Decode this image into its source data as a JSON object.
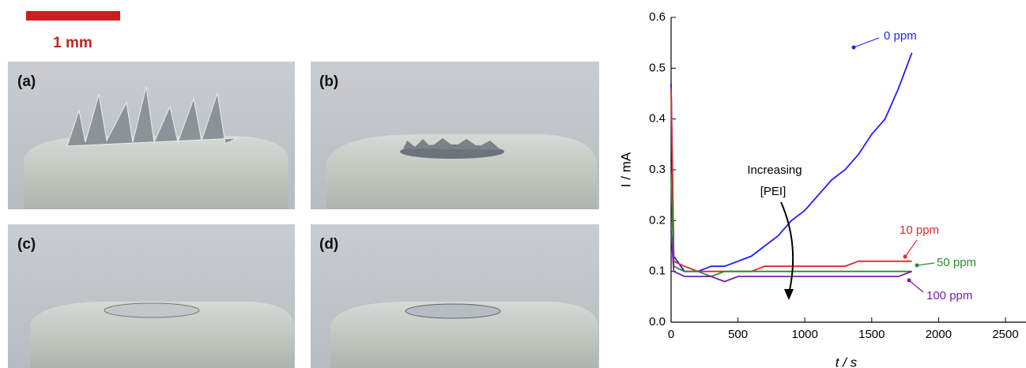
{
  "figure": {
    "scale_bar": "1 mm",
    "panels": [
      "(a)",
      "(b)",
      "(c)",
      "(d)"
    ]
  },
  "chart_data": {
    "type": "line",
    "x_label": "t / s",
    "y_label": "I / mA",
    "annotations": [
      "Increasing",
      "[PEI]"
    ],
    "x": [
      0,
      20,
      100,
      200,
      300,
      400,
      500,
      600,
      700,
      800,
      900,
      1000,
      1100,
      1200,
      1300,
      1400,
      1500,
      1600,
      1700,
      1800
    ],
    "series": [
      {
        "name": "0 ppm",
        "color": "#1f1fff",
        "values": [
          0.47,
          0.13,
          0.1,
          0.1,
          0.11,
          0.11,
          0.12,
          0.13,
          0.15,
          0.17,
          0.2,
          0.22,
          0.25,
          0.28,
          0.3,
          0.33,
          0.37,
          0.4,
          0.46,
          0.53
        ]
      },
      {
        "name": "10 ppm",
        "color": "#e0282e",
        "values": [
          0.46,
          0.12,
          0.11,
          0.1,
          0.1,
          0.1,
          0.1,
          0.1,
          0.11,
          0.11,
          0.11,
          0.11,
          0.11,
          0.11,
          0.11,
          0.12,
          0.12,
          0.12,
          0.12,
          0.12
        ]
      },
      {
        "name": "50 ppm",
        "color": "#2a8a2a",
        "values": [
          0.29,
          0.11,
          0.1,
          0.1,
          0.09,
          0.1,
          0.1,
          0.1,
          0.1,
          0.1,
          0.1,
          0.1,
          0.1,
          0.1,
          0.1,
          0.1,
          0.1,
          0.1,
          0.1,
          0.1
        ]
      },
      {
        "name": "100 ppm",
        "color": "#7a1fa2",
        "values": [
          0.18,
          0.1,
          0.09,
          0.09,
          0.09,
          0.08,
          0.09,
          0.09,
          0.09,
          0.09,
          0.09,
          0.09,
          0.09,
          0.09,
          0.09,
          0.09,
          0.09,
          0.09,
          0.09,
          0.1
        ]
      }
    ],
    "xlim": [
      0,
      2500
    ],
    "xticks": [
      0,
      500,
      1000,
      1500,
      2000,
      2500
    ],
    "ylim": [
      0,
      0.6
    ],
    "yticks": [
      {
        "value": 0,
        "label": "0.0"
      },
      0.1,
      0.2,
      0.3,
      0.4,
      0.5,
      0.6
    ]
  }
}
